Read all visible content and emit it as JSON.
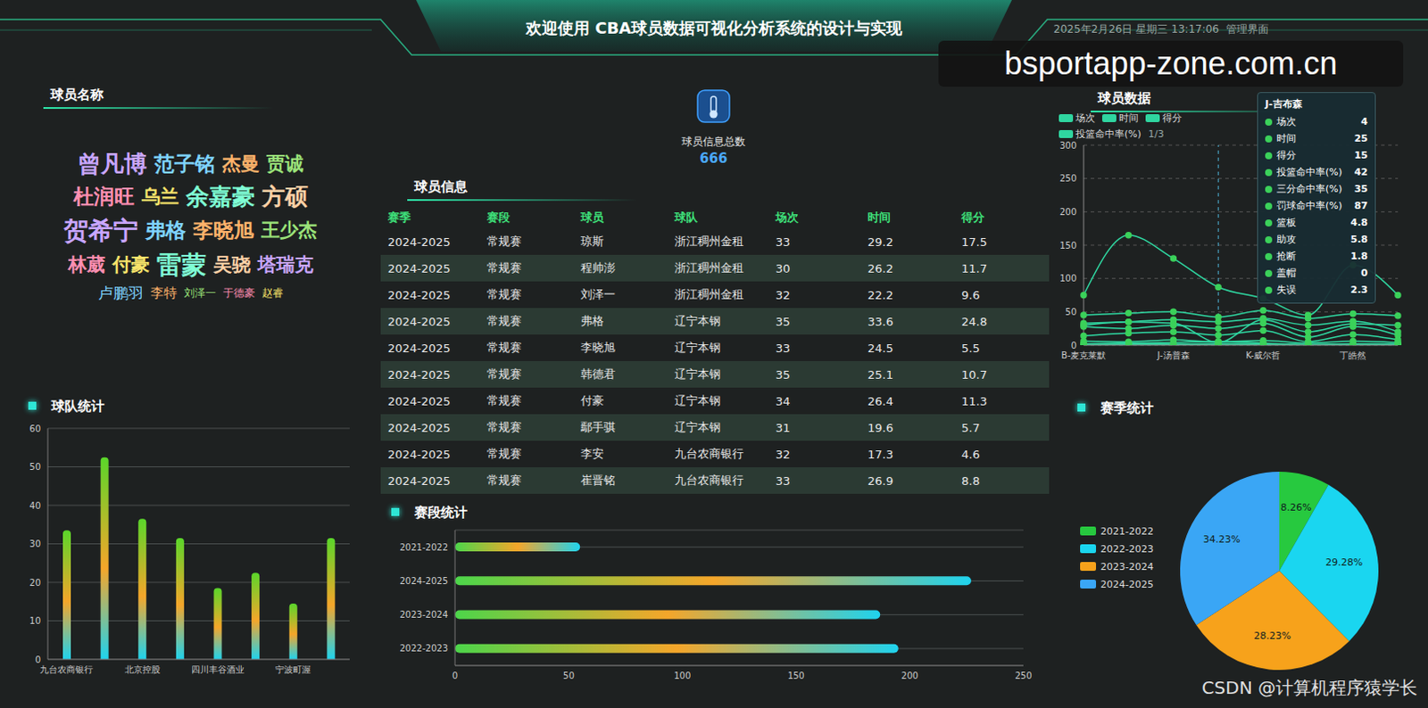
{
  "header": {
    "title": "欢迎使用 CBA球员数据可视化分析系统的设计与实现",
    "datetime": "2025年2月26日 星期三 13:17:06",
    "link": "管理界面"
  },
  "watermarks": [
    "bsportapp-zone.com.cn",
    "CSDN @计算机程序猿学长"
  ],
  "word_cloud": {
    "title": "球员名称",
    "words": [
      {
        "text": "曾凡博",
        "weight": 8
      },
      {
        "text": "范子铭",
        "weight": 7
      },
      {
        "text": "杰曼",
        "weight": 6
      },
      {
        "text": "贾诚",
        "weight": 6
      },
      {
        "text": "杜润旺",
        "weight": 7
      },
      {
        "text": "乌兰",
        "weight": 6
      },
      {
        "text": "余嘉豪",
        "weight": 8
      },
      {
        "text": "方硕",
        "weight": 8
      },
      {
        "text": "贺希宁",
        "weight": 9
      },
      {
        "text": "弗格",
        "weight": 7
      },
      {
        "text": "李晓旭",
        "weight": 7
      },
      {
        "text": "王少杰",
        "weight": 6
      },
      {
        "text": "林葳",
        "weight": 6
      },
      {
        "text": "付豪",
        "weight": 6
      },
      {
        "text": "雷蒙",
        "weight": 9
      },
      {
        "text": "吴骁",
        "weight": 6
      },
      {
        "text": "塔瑞克",
        "weight": 6
      },
      {
        "text": "卢鹏羽",
        "weight": 4
      },
      {
        "text": "李特",
        "weight": 3
      },
      {
        "text": "刘泽一",
        "weight": 2
      },
      {
        "text": "于德豪",
        "weight": 2
      },
      {
        "text": "赵睿",
        "weight": 2
      }
    ]
  },
  "total": {
    "label": "球员信息总数",
    "value": 666
  },
  "table": {
    "title": "球员信息",
    "columns": [
      "赛季",
      "赛段",
      "球员",
      "球队",
      "场次",
      "时间",
      "得分"
    ],
    "rows": [
      [
        "2024-2025",
        "常规赛",
        "琼斯",
        "浙江稠州金租",
        33,
        29.2,
        17.5
      ],
      [
        "2024-2025",
        "常规赛",
        "程帅澎",
        "浙江稠州金租",
        30,
        26.2,
        11.7
      ],
      [
        "2024-2025",
        "常规赛",
        "刘泽一",
        "浙江稠州金租",
        32,
        22.2,
        9.6
      ],
      [
        "2024-2025",
        "常规赛",
        "弗格",
        "辽宁本钢",
        35,
        33.6,
        24.8
      ],
      [
        "2024-2025",
        "常规赛",
        "李晓旭",
        "辽宁本钢",
        33,
        24.5,
        5.5
      ],
      [
        "2024-2025",
        "常规赛",
        "韩德君",
        "辽宁本钢",
        35,
        25.1,
        10.7
      ],
      [
        "2024-2025",
        "常规赛",
        "付豪",
        "辽宁本钢",
        34,
        26.4,
        11.3
      ],
      [
        "2024-2025",
        "常规赛",
        "鄢手骐",
        "辽宁本钢",
        31,
        19.6,
        5.7
      ],
      [
        "2024-2025",
        "常规赛",
        "李安",
        "九台农商银行",
        32,
        17.3,
        4.6
      ],
      [
        "2024-2025",
        "常规赛",
        "崔晋铭",
        "九台农商银行",
        33,
        26.9,
        8.8
      ]
    ]
  },
  "chart_data": [
    {
      "type": "line",
      "title": "球员数据",
      "categories": [
        "B-麦克莱默",
        null,
        "J-汤普森",
        null,
        "K-威尔哲",
        null,
        "丁皓然",
        null
      ],
      "series": [
        {
          "name": "场次",
          "color": "#2fd6a0",
          "values": [
            30,
            35,
            33,
            4,
            38,
            20,
            32,
            30
          ]
        },
        {
          "name": "时间",
          "color": "#2fd6a0",
          "values": [
            28,
            25,
            30,
            25,
            33,
            12,
            28,
            15
          ]
        },
        {
          "name": "得分",
          "color": "#2fd6a0",
          "values": [
            14,
            18,
            20,
            15,
            22,
            5,
            16,
            8
          ]
        },
        {
          "name": "投篮命中率(%)",
          "color": "#2fd6a0",
          "values": [
            45,
            48,
            50,
            42,
            52,
            40,
            47,
            44
          ]
        },
        {
          "name": "三分命中率(%)",
          "color": "#2fd6a0",
          "values": [
            33,
            35,
            38,
            35,
            40,
            30,
            36,
            20
          ]
        },
        {
          "name": "罚球命中率(%)",
          "color": "#2fd6a0",
          "values": [
            75,
            165,
            130,
            87,
            70,
            45,
            120,
            75
          ]
        },
        {
          "name": "篮板",
          "color": "#2fd6a0",
          "values": [
            6,
            5,
            8,
            4.8,
            7,
            3,
            6,
            4
          ]
        },
        {
          "name": "助攻",
          "color": "#2fd6a0",
          "values": [
            2,
            3,
            4,
            5.8,
            3,
            1,
            2,
            2
          ]
        },
        {
          "name": "抢断",
          "color": "#2fd6a0",
          "values": [
            1,
            1.2,
            0.8,
            1.8,
            1,
            0.3,
            0.9,
            0.5
          ]
        },
        {
          "name": "盖帽",
          "color": "#2fd6a0",
          "values": [
            0.5,
            0.3,
            1,
            0,
            0.8,
            0.2,
            0.4,
            0.1
          ]
        },
        {
          "name": "失误",
          "color": "#2fd6a0",
          "values": [
            1.5,
            2,
            1.8,
            2.3,
            2.1,
            0.6,
            1.5,
            1
          ]
        }
      ],
      "ylim": [
        0,
        300
      ],
      "yticks": [
        0,
        50,
        100,
        150,
        200,
        250,
        300
      ],
      "grid": true,
      "legend": "top",
      "legend_page": "1/3",
      "tooltip": {
        "index": 3,
        "title": "J-吉布森"
      }
    },
    {
      "type": "bar",
      "title": "球队统计",
      "categories": [
        "九台农商银行",
        null,
        "北京控股",
        null,
        "四川丰谷酒业",
        null,
        "宁波町渥",
        null
      ],
      "values": [
        33.5,
        52.5,
        36.5,
        31.5,
        18.5,
        22.5,
        14.5,
        31.5
      ],
      "color": "#5ad62a",
      "ylim": [
        0,
        60
      ],
      "yticks": [
        0,
        10,
        20,
        30,
        40,
        50,
        60
      ],
      "grid": true
    },
    {
      "type": "bar",
      "orientation": "horizontal",
      "title": "赛段统计",
      "categories": [
        "2021-2022",
        "2024-2025",
        "2023-2024",
        "2022-2023"
      ],
      "values": [
        55,
        227,
        187,
        195
      ],
      "color": "#4cd64a",
      "xlim": [
        0,
        250
      ],
      "xticks": [
        0,
        50,
        100,
        150,
        200,
        250
      ],
      "grid": true
    },
    {
      "type": "pie",
      "title": "赛季统计",
      "categories": [
        "2021-2022",
        "2022-2023",
        "2023-2024",
        "2024-2025"
      ],
      "values": [
        8.26,
        29.28,
        28.23,
        34.23
      ],
      "value_labels": [
        "8.26%",
        "29.28%",
        "28.23%",
        "34.23%"
      ],
      "colors": [
        "#27c93f",
        "#1ad6f0",
        "#f7a21b",
        "#3aa6f5"
      ],
      "data_labels": true,
      "legend": "left"
    }
  ]
}
